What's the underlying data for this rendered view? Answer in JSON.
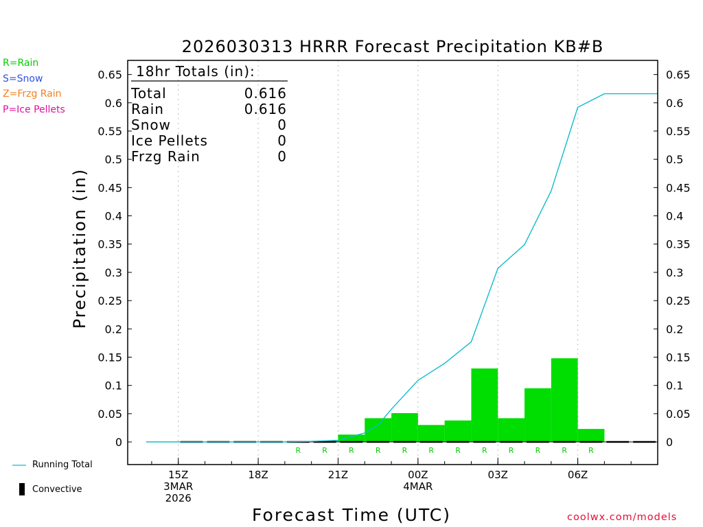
{
  "legend_left": [
    {
      "text": "R=Rain",
      "color": "#00cc00"
    },
    {
      "text": "S=Snow",
      "color": "#3050e0"
    },
    {
      "text": "Z=Frzg Rain",
      "color": "#f08020"
    },
    {
      "text": "P=Ice Pellets",
      "color": "#e0109a"
    }
  ],
  "bottom_legend": {
    "running_total": "Running Total",
    "convective": "Convective"
  },
  "credit": "coolwx.com/models",
  "colors": {
    "rain": "#00dd00",
    "running_total_line": "#11bbcc",
    "grid": "#bbbbbb"
  },
  "chart_data": {
    "type": "bar",
    "title": "2026030313 HRRR Forecast Precipitation KB#B",
    "xlabel": "Forecast Time (UTC)",
    "ylabel": "Precipitation (in)",
    "ylim": [
      -0.04,
      0.675
    ],
    "yticks": [
      0,
      0.05,
      0.1,
      0.15,
      0.2,
      0.25,
      0.3,
      0.35,
      0.4,
      0.45,
      0.5,
      0.55,
      0.6,
      0.65
    ],
    "ytick_labels": [
      "0",
      "0.05",
      "0.1",
      "0.15",
      "0.2",
      "0.25",
      "0.3",
      "0.35",
      "0.4",
      "0.45",
      "0.5",
      "0.55",
      "0.6",
      "0.65"
    ],
    "xlim_hours": [
      -1.9,
      18.0
    ],
    "xticks": [
      {
        "hour": 0,
        "lines": [
          "15Z",
          "3MAR",
          "2026"
        ]
      },
      {
        "hour": 3,
        "lines": [
          "18Z"
        ]
      },
      {
        "hour": 6,
        "lines": [
          "21Z"
        ]
      },
      {
        "hour": 9,
        "lines": [
          "00Z",
          "4MAR"
        ]
      },
      {
        "hour": 12,
        "lines": [
          "03Z"
        ]
      },
      {
        "hour": 15,
        "lines": [
          "06Z"
        ]
      }
    ],
    "totals_box": {
      "header": "18hr Totals (in):",
      "rows": [
        {
          "label": "Total",
          "value": "0.616"
        },
        {
          "label": "Rain",
          "value": "0.616"
        },
        {
          "label": "Snow",
          "value": "0"
        },
        {
          "label": "Ice Pellets",
          "value": "0"
        },
        {
          "label": "Frzg Rain",
          "value": "0"
        }
      ]
    },
    "hourly_precip": {
      "hours": [
        1,
        2,
        3,
        4,
        5,
        6,
        7,
        8,
        9,
        10,
        11,
        12,
        13,
        14,
        15,
        16,
        17,
        18
      ],
      "values": [
        0,
        0,
        0,
        0,
        0.001,
        0.002,
        0.013,
        0.042,
        0.051,
        0.03,
        0.038,
        0.13,
        0.042,
        0.095,
        0.148,
        0.023,
        0,
        0
      ]
    },
    "running_total": {
      "hours": [
        -1.2,
        0,
        1,
        2,
        3,
        4,
        5,
        6,
        7,
        7.5,
        8,
        9,
        10,
        11,
        12,
        13,
        14,
        15,
        16,
        17,
        18
      ],
      "values": [
        0,
        0,
        0,
        0,
        0,
        0,
        0.001,
        0.003,
        0.016,
        0.03,
        0.058,
        0.109,
        0.139,
        0.177,
        0.307,
        0.349,
        0.444,
        0.592,
        0.616,
        0.616,
        0.616
      ]
    },
    "ptype_markers": {
      "symbol": "R",
      "hours": [
        5,
        6,
        7,
        8,
        9,
        10,
        11,
        12,
        13,
        14,
        15,
        16
      ]
    }
  }
}
